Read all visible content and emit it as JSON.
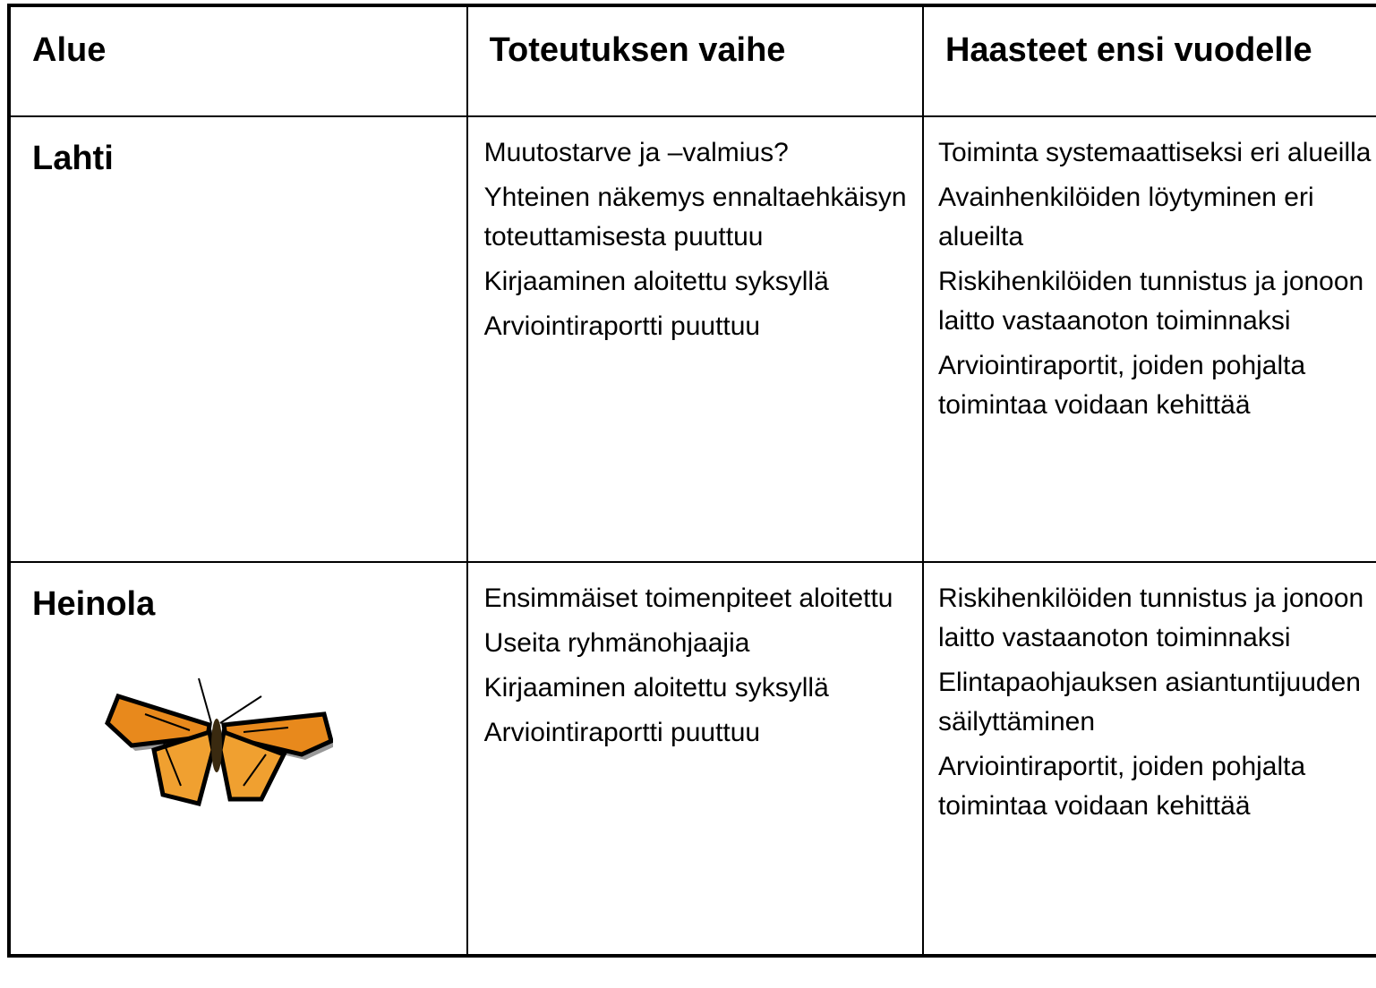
{
  "table": {
    "header": [
      "Alue",
      "Toteutuksen vaihe",
      "Haasteet ensi vuodelle"
    ],
    "rows": [
      {
        "area": "Lahti",
        "stage": [
          "Muutostarve ja –valmius?",
          "Yhteinen näkemys ennaltaehkäisyn toteuttamisesta puuttuu",
          "Kirjaaminen aloitettu syksyllä",
          "Arviointiraportti puuttuu"
        ],
        "challenges": [
          "Toiminta systemaattiseksi eri alueilla",
          "Avainhenkilöiden löytyminen eri alueilta",
          "Riskihenkilöiden tunnistus ja jonoon laitto vastaanoton toiminnaksi",
          "Arviointiraportit, joiden pohjalta toimintaa voidaan kehittää"
        ]
      },
      {
        "area": "Heinola",
        "stage": [
          "Ensimmäiset toimenpiteet aloitettu",
          "Useita ryhmänohjaajia",
          "Kirjaaminen aloitettu syksyllä",
          "Arviointiraportti puuttuu"
        ],
        "challenges": [
          "Riskihenkilöiden tunnistus ja jonoon laitto vastaanoton toiminnaksi",
          "Elintapaohjauksen asiantuntijuuden säilyttäminen",
          "Arviointiraportit, joiden pohjalta toimintaa voidaan kehittää"
        ]
      }
    ]
  }
}
